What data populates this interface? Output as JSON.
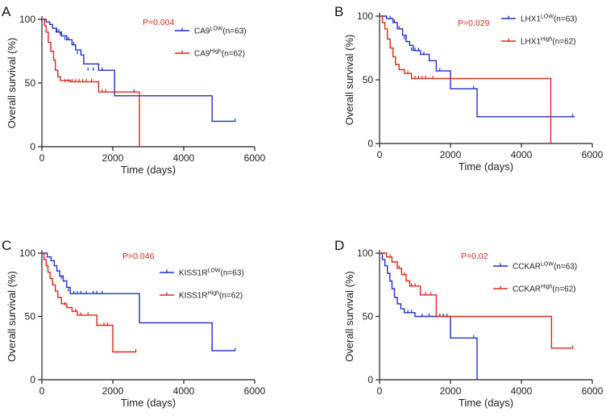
{
  "figure": {
    "panels": [
      "A",
      "B",
      "C",
      "D"
    ]
  },
  "colors": {
    "low": "#1f2ecc",
    "high": "#e0261b",
    "axis": "#222222",
    "pvalue": "#e0261b"
  },
  "chart_data": [
    {
      "type": "line",
      "subtype": "kaplan-meier",
      "panel": "A",
      "xlabel": "Time (days)",
      "ylabel": "Overall survival (%)",
      "xlim": [
        0,
        6000
      ],
      "ylim": [
        0,
        100
      ],
      "xticks": [
        "0",
        "2000",
        "4000",
        "6000"
      ],
      "yticks": [
        "0",
        "50",
        "100"
      ],
      "pvalue": "P=0.004",
      "legend_position": "top-right",
      "series": [
        {
          "name": "CA9",
          "group": "LOW",
          "n_label": "(n=63)",
          "color": "#1f2ecc",
          "steps": [
            [
              0,
              100
            ],
            [
              120,
              98
            ],
            [
              220,
              96
            ],
            [
              300,
              93
            ],
            [
              420,
              90
            ],
            [
              550,
              87
            ],
            [
              700,
              84
            ],
            [
              850,
              80
            ],
            [
              950,
              76
            ],
            [
              1100,
              72
            ],
            [
              1180,
              65
            ],
            [
              1600,
              60
            ],
            [
              2050,
              40
            ],
            [
              4800,
              20
            ],
            [
              5450,
              20
            ]
          ],
          "censored": [
            [
              400,
              90
            ],
            [
              480,
              90
            ],
            [
              520,
              88
            ],
            [
              650,
              84
            ],
            [
              750,
              84
            ],
            [
              900,
              80
            ],
            [
              1000,
              73
            ],
            [
              1300,
              60
            ],
            [
              1450,
              60
            ],
            [
              1700,
              60
            ],
            [
              5450,
              20
            ]
          ]
        },
        {
          "name": "CA9",
          "group": "High",
          "n_label": "(n=62)",
          "color": "#e0261b",
          "steps": [
            [
              0,
              100
            ],
            [
              70,
              95
            ],
            [
              120,
              90
            ],
            [
              180,
              82
            ],
            [
              250,
              75
            ],
            [
              330,
              68
            ],
            [
              380,
              60
            ],
            [
              450,
              55
            ],
            [
              520,
              52
            ],
            [
              800,
              51
            ],
            [
              1500,
              51
            ],
            [
              1600,
              43
            ],
            [
              2700,
              43
            ],
            [
              2750,
              0
            ]
          ],
          "censored": [
            [
              650,
              51
            ],
            [
              750,
              51
            ],
            [
              850,
              51
            ],
            [
              950,
              51
            ],
            [
              1050,
              51
            ],
            [
              1150,
              51
            ],
            [
              1250,
              51
            ],
            [
              1400,
              51
            ],
            [
              1700,
              43
            ],
            [
              1800,
              43
            ],
            [
              2600,
              43
            ]
          ]
        }
      ]
    },
    {
      "type": "line",
      "subtype": "kaplan-meier",
      "panel": "B",
      "xlabel": "Time (days)",
      "ylabel": "Overall survival (%)",
      "xlim": [
        0,
        6000
      ],
      "ylim": [
        0,
        100
      ],
      "xticks": [
        "0",
        "2000",
        "4000",
        "6000"
      ],
      "yticks": [
        "0",
        "50",
        "100"
      ],
      "pvalue": "P=0.029",
      "legend_position": "top-right",
      "series": [
        {
          "name": "LHX1",
          "group": "LOW",
          "n_label": "(n=63)",
          "color": "#1f2ecc",
          "steps": [
            [
              0,
              100
            ],
            [
              200,
              98
            ],
            [
              380,
              95
            ],
            [
              500,
              90
            ],
            [
              650,
              85
            ],
            [
              750,
              80
            ],
            [
              850,
              77
            ],
            [
              950,
              73
            ],
            [
              1150,
              70
            ],
            [
              1400,
              65
            ],
            [
              1600,
              57
            ],
            [
              2000,
              43
            ],
            [
              2750,
              21
            ],
            [
              5500,
              21
            ]
          ],
          "censored": [
            [
              300,
              98
            ],
            [
              420,
              95
            ],
            [
              550,
              90
            ],
            [
              700,
              82
            ],
            [
              900,
              73
            ],
            [
              1000,
              73
            ],
            [
              1100,
              73
            ],
            [
              1250,
              70
            ],
            [
              1700,
              57
            ],
            [
              2650,
              43
            ],
            [
              5450,
              21
            ]
          ]
        },
        {
          "name": "LHX1",
          "group": "High",
          "n_label": "(n=62)",
          "color": "#e0261b",
          "steps": [
            [
              0,
              100
            ],
            [
              80,
              95
            ],
            [
              150,
              90
            ],
            [
              220,
              82
            ],
            [
              300,
              75
            ],
            [
              380,
              68
            ],
            [
              450,
              62
            ],
            [
              550,
              58
            ],
            [
              700,
              55
            ],
            [
              900,
              51
            ],
            [
              4800,
              51
            ],
            [
              4830,
              0
            ]
          ],
          "censored": [
            [
              800,
              55
            ],
            [
              1000,
              51
            ],
            [
              1100,
              51
            ],
            [
              1200,
              51
            ],
            [
              1300,
              51
            ],
            [
              1500,
              51
            ]
          ]
        }
      ]
    },
    {
      "type": "line",
      "subtype": "kaplan-meier",
      "panel": "C",
      "xlabel": "Time (days)",
      "ylabel": "Overall survival (%)",
      "xlim": [
        0,
        6000
      ],
      "ylim": [
        0,
        100
      ],
      "xticks": [
        "0",
        "2000",
        "4000",
        "6000"
      ],
      "yticks": [
        "0",
        "50",
        "100"
      ],
      "pvalue": "P=0.046",
      "legend_position": "top-right",
      "series": [
        {
          "name": "KISS1R",
          "group": "LOW",
          "n_label": "(n=63)",
          "color": "#1f2ecc",
          "steps": [
            [
              0,
              100
            ],
            [
              150,
              97
            ],
            [
              260,
              94
            ],
            [
              350,
              90
            ],
            [
              420,
              86
            ],
            [
              500,
              82
            ],
            [
              600,
              78
            ],
            [
              700,
              73
            ],
            [
              800,
              68
            ],
            [
              2750,
              45
            ],
            [
              4800,
              23
            ],
            [
              5450,
              23
            ]
          ],
          "censored": [
            [
              550,
              80
            ],
            [
              750,
              70
            ],
            [
              900,
              68
            ],
            [
              1000,
              68
            ],
            [
              1100,
              68
            ],
            [
              1250,
              68
            ],
            [
              1450,
              68
            ],
            [
              1550,
              68
            ],
            [
              1700,
              68
            ],
            [
              5450,
              23
            ]
          ]
        },
        {
          "name": "KISS1R",
          "group": "High",
          "n_label": "(n=62)",
          "color": "#e0261b",
          "steps": [
            [
              0,
              100
            ],
            [
              60,
              95
            ],
            [
              120,
              90
            ],
            [
              170,
              85
            ],
            [
              230,
              80
            ],
            [
              300,
              75
            ],
            [
              380,
              70
            ],
            [
              450,
              65
            ],
            [
              550,
              60
            ],
            [
              700,
              57
            ],
            [
              850,
              54
            ],
            [
              1000,
              51
            ],
            [
              1550,
              43
            ],
            [
              2000,
              22
            ],
            [
              2650,
              22
            ]
          ],
          "censored": [
            [
              650,
              59
            ],
            [
              950,
              54
            ],
            [
              1100,
              51
            ],
            [
              1300,
              51
            ],
            [
              1750,
              43
            ],
            [
              1850,
              43
            ],
            [
              2650,
              22
            ]
          ]
        }
      ]
    },
    {
      "type": "line",
      "subtype": "kaplan-meier",
      "panel": "D",
      "xlabel": "Time (days)",
      "ylabel": "Overall survival (%)",
      "xlim": [
        0,
        6000
      ],
      "ylim": [
        0,
        100
      ],
      "xticks": [
        "0",
        "2000",
        "4000",
        "6000"
      ],
      "yticks": [
        "0",
        "50",
        "100"
      ],
      "pvalue": "P=0.02",
      "legend_position": "top-right",
      "series": [
        {
          "name": "CCKAR",
          "group": "LOW",
          "n_label": "(n=63)",
          "color": "#1f2ecc",
          "steps": [
            [
              0,
              100
            ],
            [
              80,
              95
            ],
            [
              150,
              90
            ],
            [
              220,
              84
            ],
            [
              290,
              78
            ],
            [
              350,
              72
            ],
            [
              420,
              65
            ],
            [
              500,
              60
            ],
            [
              600,
              56
            ],
            [
              700,
              53
            ],
            [
              1000,
              50
            ],
            [
              2000,
              33
            ],
            [
              2750,
              0
            ]
          ],
          "censored": [
            [
              800,
              53
            ],
            [
              900,
              53
            ],
            [
              1200,
              50
            ],
            [
              1400,
              50
            ],
            [
              1600,
              50
            ],
            [
              1700,
              50
            ],
            [
              1800,
              50
            ],
            [
              1900,
              50
            ],
            [
              2650,
              33
            ]
          ]
        },
        {
          "name": "CCKAR",
          "group": "High",
          "n_label": "(n=62)",
          "color": "#e0261b",
          "steps": [
            [
              0,
              100
            ],
            [
              200,
              97
            ],
            [
              350,
              93
            ],
            [
              500,
              88
            ],
            [
              620,
              83
            ],
            [
              750,
              78
            ],
            [
              850,
              74
            ],
            [
              1150,
              67
            ],
            [
              1600,
              50
            ],
            [
              4850,
              25
            ],
            [
              5450,
              25
            ]
          ],
          "censored": [
            [
              300,
              97
            ],
            [
              550,
              88
            ],
            [
              700,
              83
            ],
            [
              900,
              74
            ],
            [
              1000,
              74
            ],
            [
              1300,
              67
            ],
            [
              1450,
              67
            ],
            [
              5450,
              25
            ]
          ]
        }
      ]
    }
  ]
}
